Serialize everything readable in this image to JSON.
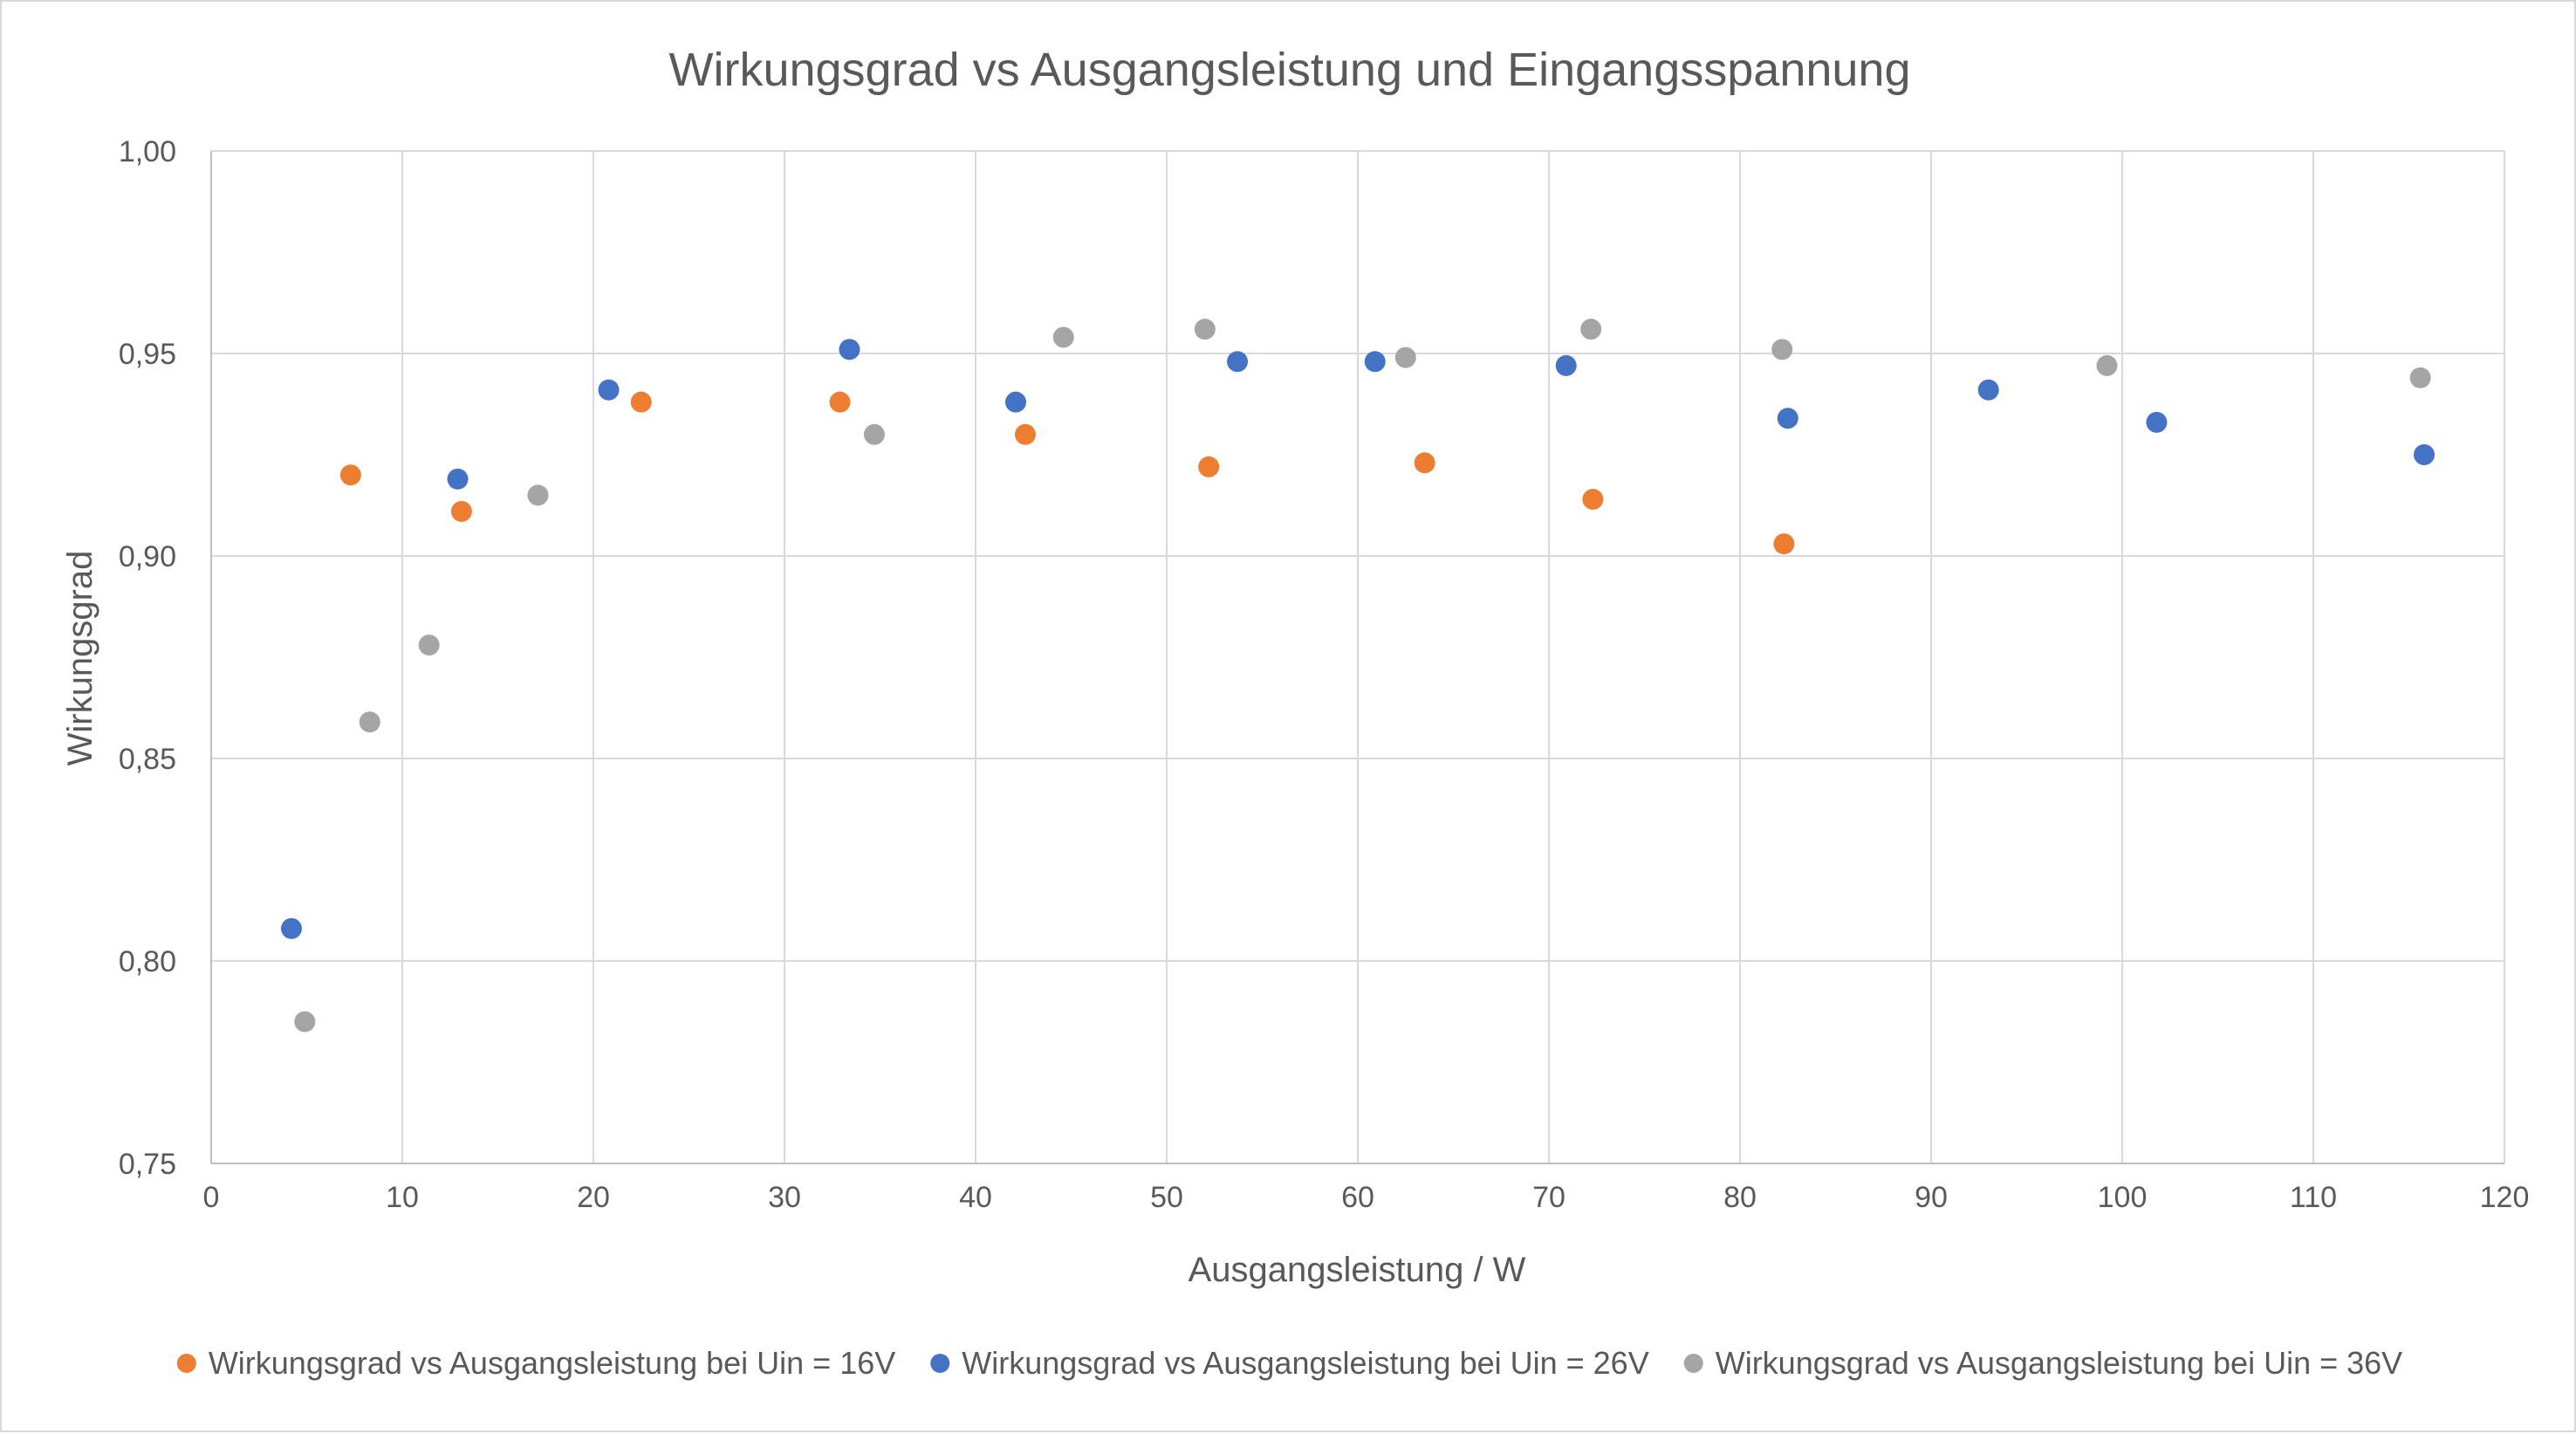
{
  "chart_data": {
    "type": "scatter",
    "title": "Wirkungsgrad vs Ausgangsleistung und Eingangsspannung",
    "xlabel": "Ausgangsleistung / W",
    "ylabel": "Wirkungsgrad",
    "xlim": [
      0,
      120
    ],
    "ylim": [
      0.75,
      1.0
    ],
    "x_ticks": [
      0,
      10,
      20,
      30,
      40,
      50,
      60,
      70,
      80,
      90,
      100,
      110,
      120
    ],
    "y_ticks": [
      0.75,
      0.8,
      0.85,
      0.9,
      0.95,
      1.0
    ],
    "x_tick_labels": [
      "0",
      "10",
      "20",
      "30",
      "40",
      "50",
      "60",
      "70",
      "80",
      "90",
      "100",
      "110",
      "120"
    ],
    "y_tick_labels": [
      "0,75",
      "0,80",
      "0,85",
      "0,90",
      "0,95",
      "1,00"
    ],
    "grid": true,
    "legend_position": "bottom",
    "series": [
      {
        "name": "Wirkungsgrad vs Ausgangsleistung bei Uin = 16V",
        "color": "#ed7d31",
        "points": [
          [
            7.3,
            0.92
          ],
          [
            13.1,
            0.911
          ],
          [
            22.5,
            0.938
          ],
          [
            32.9,
            0.938
          ],
          [
            42.6,
            0.93
          ],
          [
            52.2,
            0.922
          ],
          [
            63.5,
            0.923
          ],
          [
            72.3,
            0.914
          ],
          [
            82.3,
            0.903
          ]
        ]
      },
      {
        "name": "Wirkungsgrad vs Ausgangsleistung bei Uin = 26V",
        "color": "#4472c4",
        "points": [
          [
            4.2,
            0.808
          ],
          [
            12.9,
            0.919
          ],
          [
            20.8,
            0.941
          ],
          [
            33.4,
            0.951
          ],
          [
            42.1,
            0.938
          ],
          [
            53.7,
            0.948
          ],
          [
            60.9,
            0.948
          ],
          [
            70.9,
            0.947
          ],
          [
            82.5,
            0.934
          ],
          [
            93.0,
            0.941
          ],
          [
            101.8,
            0.933
          ],
          [
            115.8,
            0.925
          ]
        ]
      },
      {
        "name": "Wirkungsgrad vs Ausgangsleistung bei Uin = 36V",
        "color": "#a5a5a5",
        "points": [
          [
            4.9,
            0.785
          ],
          [
            8.3,
            0.859
          ],
          [
            11.4,
            0.878
          ],
          [
            17.1,
            0.915
          ],
          [
            34.7,
            0.93
          ],
          [
            44.6,
            0.954
          ],
          [
            52.0,
            0.956
          ],
          [
            62.5,
            0.949
          ],
          [
            72.2,
            0.956
          ],
          [
            82.2,
            0.951
          ],
          [
            99.2,
            0.947
          ],
          [
            115.6,
            0.944
          ]
        ]
      }
    ]
  }
}
